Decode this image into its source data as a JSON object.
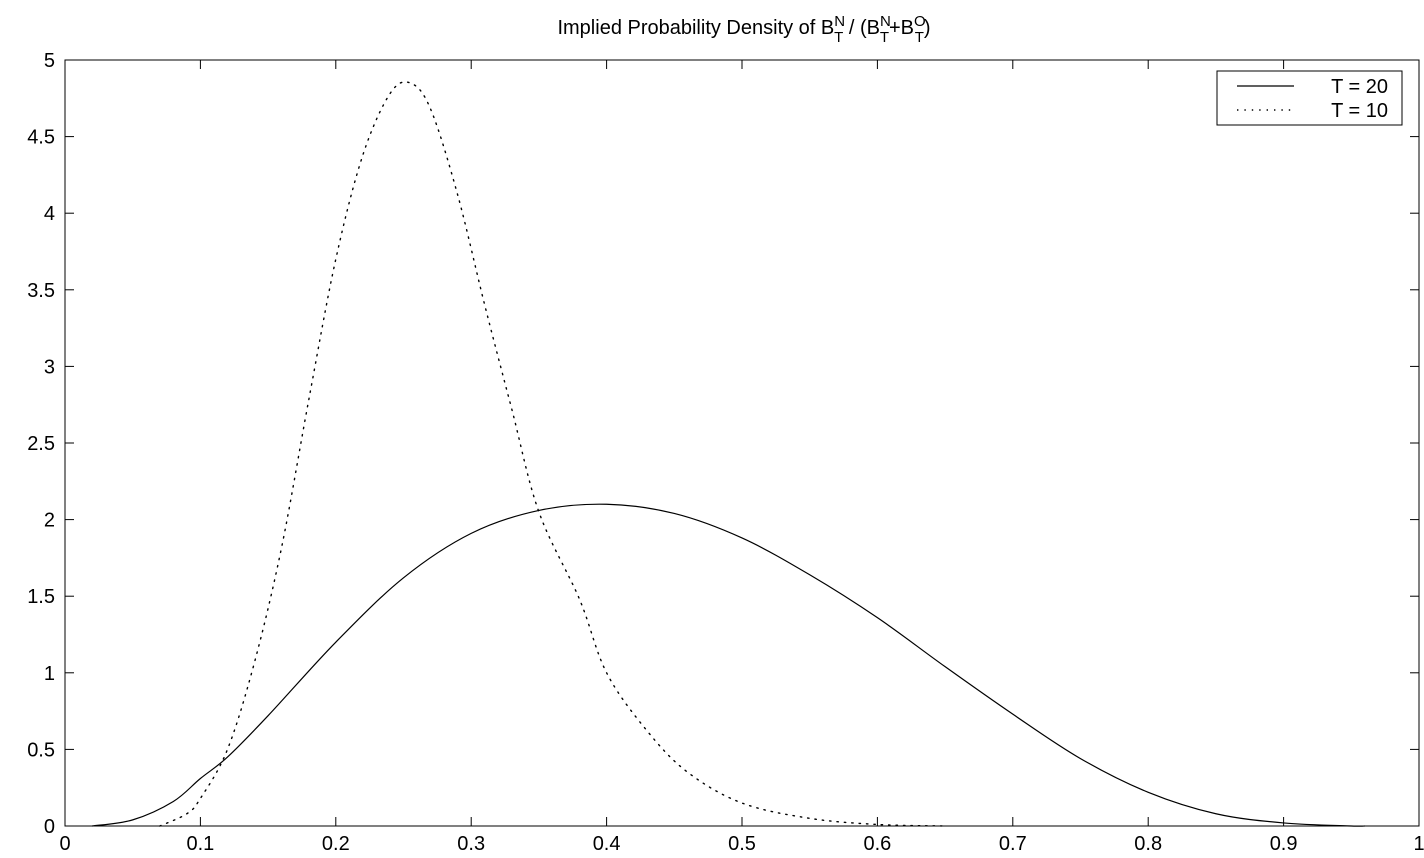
{
  "chart_data": {
    "type": "line",
    "title": {
      "text": "Implied Probability Density of ",
      "b1": "B",
      "b1_sup": "N",
      "b1_sub": "T",
      "mid": " / (",
      "b2": "B",
      "b2_sup": "N",
      "b2_sub": "T",
      "plus": "+",
      "b3": "B",
      "b3_sup": "O",
      "b3_sub": "T",
      "close": ")"
    },
    "xlabel": "",
    "ylabel": "",
    "xlim": [
      0,
      1
    ],
    "ylim": [
      0,
      5
    ],
    "x_ticks": [
      "0",
      "0.1",
      "0.2",
      "0.3",
      "0.4",
      "0.5",
      "0.6",
      "0.7",
      "0.8",
      "0.9",
      "1"
    ],
    "y_ticks": [
      "0",
      "0.5",
      "1",
      "1.5",
      "2",
      "2.5",
      "3",
      "3.5",
      "4",
      "4.5",
      "5"
    ],
    "grid": false,
    "legend_position": "top-right",
    "series": [
      {
        "name": "T = 20",
        "style": "solid",
        "x": [
          0.02,
          0.05,
          0.08,
          0.1,
          0.12,
          0.15,
          0.2,
          0.25,
          0.3,
          0.35,
          0.4,
          0.45,
          0.5,
          0.55,
          0.6,
          0.65,
          0.7,
          0.75,
          0.8,
          0.85,
          0.9,
          0.95,
          0.96
        ],
        "y": [
          0.0,
          0.04,
          0.16,
          0.31,
          0.45,
          0.72,
          1.2,
          1.62,
          1.91,
          2.06,
          2.1,
          2.04,
          1.88,
          1.64,
          1.36,
          1.04,
          0.73,
          0.44,
          0.22,
          0.08,
          0.02,
          0.0,
          0.0
        ]
      },
      {
        "name": "T = 10",
        "style": "dotted",
        "x": [
          0.07,
          0.09,
          0.1,
          0.12,
          0.14,
          0.16,
          0.18,
          0.2,
          0.22,
          0.24,
          0.255,
          0.27,
          0.29,
          0.31,
          0.33,
          0.35,
          0.38,
          0.4,
          0.43,
          0.46,
          0.5,
          0.55,
          0.6,
          0.65
        ],
        "y": [
          0.0,
          0.08,
          0.18,
          0.5,
          1.07,
          1.82,
          2.78,
          3.7,
          4.38,
          4.78,
          4.85,
          4.68,
          4.12,
          3.4,
          2.72,
          2.05,
          1.48,
          1.0,
          0.62,
          0.35,
          0.15,
          0.05,
          0.01,
          0.0
        ]
      }
    ]
  }
}
